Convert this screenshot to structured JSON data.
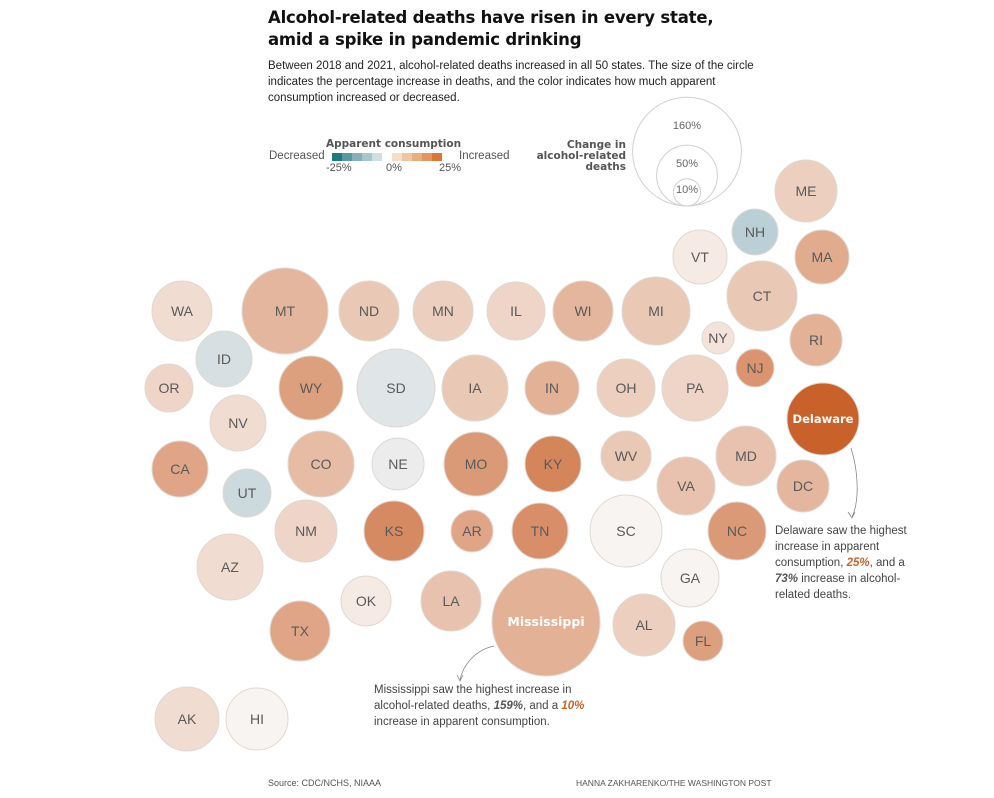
{
  "header": {
    "title_line1": "Alcohol-related deaths have risen in every state,",
    "title_line2": "amid a spike in pandemic drinking",
    "subtitle": "Between 2018 and 2021, alcohol-related deaths increased in all 50 states. The size of the circle indicates the percentage increase in deaths, and the color indicates how much apparent consumption increased or decreased."
  },
  "legend": {
    "color_title": "Apparent consumption",
    "decreased_label": "Decreased",
    "increased_label": "Increased",
    "ticks": [
      "-25%",
      "0%",
      "25%"
    ],
    "scale_colors": [
      "#1f7a80",
      "#5a98a0",
      "#86b0b8",
      "#a9c6cc",
      "#cfdfe2",
      "#ffffff",
      "#f6ddc8",
      "#efc6a2",
      "#e8ae7e",
      "#e0965c",
      "#d6783a"
    ],
    "size_title": "Change in alcohol-related deaths",
    "size_circles": [
      {
        "label": "160%",
        "value": 160
      },
      {
        "label": "50%",
        "value": 50
      },
      {
        "label": "10%",
        "value": 10
      }
    ]
  },
  "chart_data": {
    "type": "bubble-tile-map",
    "title": "Alcohol-related deaths have risen in every state, amid a spike in pandemic drinking",
    "size_encoding": "Percentage change in alcohol-related deaths, 2018-2021",
    "color_encoding": "Change in apparent alcohol consumption (-25% to 25%)",
    "states": [
      {
        "abbr": "ME",
        "death_change": 50,
        "consumption_change": 5
      },
      {
        "abbr": "NH",
        "death_change": 28,
        "consumption_change": -6
      },
      {
        "abbr": "VT",
        "death_change": 35,
        "consumption_change": 1
      },
      {
        "abbr": "MA",
        "death_change": 38,
        "consumption_change": 11
      },
      {
        "abbr": "CT",
        "death_change": 65,
        "consumption_change": 6
      },
      {
        "abbr": "RI",
        "death_change": 32,
        "consumption_change": 10
      },
      {
        "abbr": "NY",
        "death_change": 10,
        "consumption_change": 2
      },
      {
        "abbr": "NJ",
        "death_change": 14,
        "consumption_change": 15
      },
      {
        "abbr": "WA",
        "death_change": 45,
        "consumption_change": 3
      },
      {
        "abbr": "MT",
        "death_change": 100,
        "consumption_change": 9
      },
      {
        "abbr": "ND",
        "death_change": 70,
        "consumption_change": 6
      },
      {
        "abbr": "MN",
        "death_change": 65,
        "consumption_change": 5
      },
      {
        "abbr": "IL",
        "death_change": 50,
        "consumption_change": 4
      },
      {
        "abbr": "WI",
        "death_change": 58,
        "consumption_change": 9
      },
      {
        "abbr": "MI",
        "death_change": 78,
        "consumption_change": 6
      },
      {
        "abbr": "ID",
        "death_change": 48,
        "consumption_change": -3
      },
      {
        "abbr": "OR",
        "death_change": 30,
        "consumption_change": 4
      },
      {
        "abbr": "NV",
        "death_change": 43,
        "consumption_change": 3
      },
      {
        "abbr": "WY",
        "death_change": 60,
        "consumption_change": 13
      },
      {
        "abbr": "SD",
        "death_change": 100,
        "consumption_change": -2
      },
      {
        "abbr": "IA",
        "death_change": 65,
        "consumption_change": 6
      },
      {
        "abbr": "IN",
        "death_change": 45,
        "consumption_change": 10
      },
      {
        "abbr": "OH",
        "death_change": 50,
        "consumption_change": 5
      },
      {
        "abbr": "PA",
        "death_change": 70,
        "consumption_change": 4
      },
      {
        "abbr": "DE",
        "name": "Delaware",
        "death_change": 73,
        "consumption_change": 25
      },
      {
        "abbr": "CA",
        "death_change": 40,
        "consumption_change": 12
      },
      {
        "abbr": "UT",
        "death_change": 32,
        "consumption_change": -4
      },
      {
        "abbr": "CO",
        "death_change": 70,
        "consumption_change": 8
      },
      {
        "abbr": "NE",
        "death_change": 50,
        "consumption_change": -1
      },
      {
        "abbr": "MO",
        "death_change": 70,
        "consumption_change": 14
      },
      {
        "abbr": "KY",
        "death_change": 50,
        "consumption_change": 18
      },
      {
        "abbr": "WV",
        "death_change": 35,
        "consumption_change": 6
      },
      {
        "abbr": "VA",
        "death_change": 50,
        "consumption_change": 7
      },
      {
        "abbr": "MD",
        "death_change": 60,
        "consumption_change": 7
      },
      {
        "abbr": "DC",
        "death_change": 40,
        "consumption_change": 9
      },
      {
        "abbr": "NM",
        "death_change": 55,
        "consumption_change": 4
      },
      {
        "abbr": "KS",
        "death_change": 58,
        "consumption_change": 17
      },
      {
        "abbr": "AR",
        "death_change": 25,
        "consumption_change": 12
      },
      {
        "abbr": "TN",
        "death_change": 50,
        "consumption_change": 16
      },
      {
        "abbr": "SC",
        "death_change": 80,
        "consumption_change": 0
      },
      {
        "abbr": "NC",
        "death_change": 55,
        "consumption_change": 14
      },
      {
        "abbr": "AZ",
        "death_change": 65,
        "consumption_change": 3
      },
      {
        "abbr": "OK",
        "death_change": 35,
        "consumption_change": 1
      },
      {
        "abbr": "LA",
        "death_change": 50,
        "consumption_change": 7
      },
      {
        "abbr": "MS",
        "name": "Mississippi",
        "death_change": 159,
        "consumption_change": 10
      },
      {
        "abbr": "AL",
        "death_change": 55,
        "consumption_change": 5
      },
      {
        "abbr": "GA",
        "death_change": 50,
        "consumption_change": 0
      },
      {
        "abbr": "FL",
        "death_change": 25,
        "consumption_change": 13
      },
      {
        "abbr": "TX",
        "death_change": 58,
        "consumption_change": 12
      },
      {
        "abbr": "AK",
        "death_change": 58,
        "consumption_change": 3
      },
      {
        "abbr": "HI",
        "death_change": 55,
        "consumption_change": 0
      }
    ]
  },
  "annotations": {
    "delaware": {
      "text1": "Delaware saw the highest increase in apparent consumption, ",
      "value1": "25%",
      "text2": ", and a ",
      "value2": "73%",
      "text3": " increase in alcohol-related deaths."
    },
    "mississippi": {
      "text1": "Mississippi saw the highest increase in alcohol-related deaths, ",
      "value1": "159%",
      "text2": ", and a ",
      "value2": "10%",
      "text3": " increase in apparent consumption."
    }
  },
  "footer": {
    "source": "Source: CDC/NCHS, NIAAA",
    "credit": "HANNA ZAKHARENKO/THE WASHINGTON POST"
  }
}
